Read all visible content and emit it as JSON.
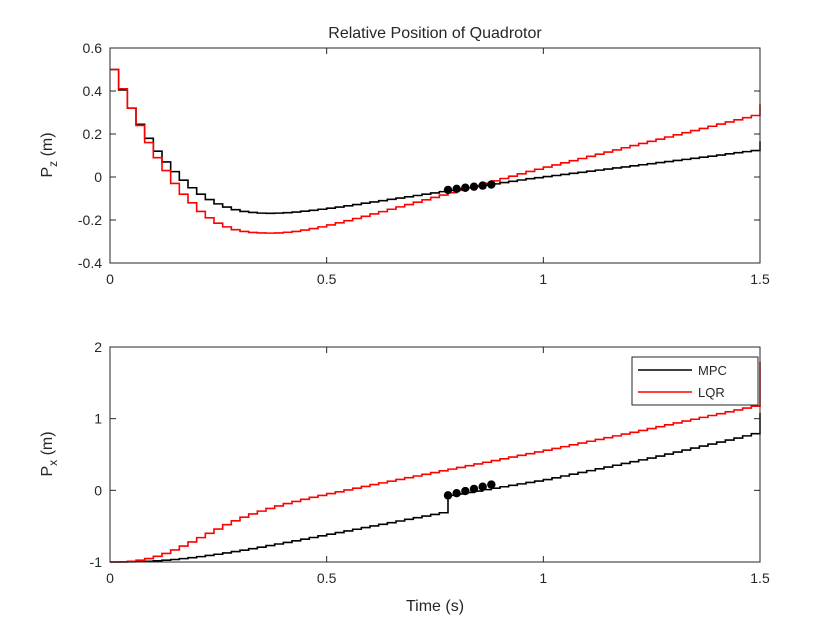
{
  "chart_data": [
    {
      "type": "line",
      "title": "Relative Position of Quadrotor",
      "ylabel_main": "P",
      "ylabel_sub": "z",
      "ylabel_unit": " (m)",
      "xlabel": "",
      "xlim": [
        0,
        1.5
      ],
      "ylim": [
        -0.4,
        0.6
      ],
      "xticks": [
        0,
        0.5,
        1,
        1.5
      ],
      "xtick_labels": [
        "0",
        "0.5",
        "1",
        "1.5"
      ],
      "yticks": [
        -0.4,
        -0.2,
        0,
        0.2,
        0.4,
        0.6
      ],
      "ytick_labels": [
        "-0.4",
        "-0.2",
        "0",
        "0.2",
        "0.4",
        "0.6"
      ],
      "grid": false,
      "stairs": true,
      "series": [
        {
          "name": "MPC",
          "color": "#000000",
          "x": [
            0,
            0.02,
            0.04,
            0.06,
            0.08,
            0.1,
            0.12,
            0.14,
            0.16,
            0.18,
            0.2,
            0.22,
            0.24,
            0.26,
            0.28,
            0.3,
            0.32,
            0.34,
            0.36,
            0.38,
            0.4,
            0.42,
            0.44,
            0.46,
            0.48,
            0.5,
            0.52,
            0.54,
            0.56,
            0.58,
            0.6,
            0.62,
            0.64,
            0.66,
            0.68,
            0.7,
            0.72,
            0.74,
            0.76,
            0.78,
            0.8,
            0.82,
            0.84,
            0.86,
            0.88,
            0.9,
            0.92,
            0.94,
            0.96,
            0.98,
            1.0,
            1.02,
            1.04,
            1.06,
            1.08,
            1.1,
            1.12,
            1.14,
            1.16,
            1.18,
            1.2,
            1.22,
            1.24,
            1.26,
            1.28,
            1.3,
            1.32,
            1.34,
            1.36,
            1.38,
            1.4,
            1.42,
            1.44,
            1.46,
            1.48,
            1.5
          ],
          "y": [
            0.5,
            0.405,
            0.32,
            0.245,
            0.18,
            0.12,
            0.07,
            0.025,
            -0.015,
            -0.05,
            -0.08,
            -0.105,
            -0.125,
            -0.14,
            -0.152,
            -0.16,
            -0.165,
            -0.168,
            -0.169,
            -0.168,
            -0.166,
            -0.163,
            -0.159,
            -0.155,
            -0.15,
            -0.145,
            -0.14,
            -0.134,
            -0.128,
            -0.122,
            -0.116,
            -0.11,
            -0.104,
            -0.098,
            -0.092,
            -0.086,
            -0.08,
            -0.074,
            -0.068,
            -0.062,
            -0.056,
            -0.05,
            -0.044,
            -0.038,
            -0.032,
            -0.026,
            -0.02,
            -0.014,
            -0.008,
            -0.003,
            0.002,
            0.007,
            0.012,
            0.017,
            0.022,
            0.027,
            0.032,
            0.037,
            0.042,
            0.047,
            0.052,
            0.057,
            0.062,
            0.067,
            0.072,
            0.077,
            0.082,
            0.087,
            0.092,
            0.097,
            0.102,
            0.108,
            0.113,
            0.118,
            0.123,
            0.166
          ]
        },
        {
          "name": "LQR",
          "color": "#ff0000",
          "x": [
            0,
            0.02,
            0.04,
            0.06,
            0.08,
            0.1,
            0.12,
            0.14,
            0.16,
            0.18,
            0.2,
            0.22,
            0.24,
            0.26,
            0.28,
            0.3,
            0.32,
            0.34,
            0.36,
            0.38,
            0.4,
            0.42,
            0.44,
            0.46,
            0.48,
            0.5,
            0.52,
            0.54,
            0.56,
            0.58,
            0.6,
            0.62,
            0.64,
            0.66,
            0.68,
            0.7,
            0.72,
            0.74,
            0.76,
            0.78,
            0.8,
            0.82,
            0.84,
            0.86,
            0.88,
            0.9,
            0.92,
            0.94,
            0.96,
            0.98,
            1.0,
            1.02,
            1.04,
            1.06,
            1.08,
            1.1,
            1.12,
            1.14,
            1.16,
            1.18,
            1.2,
            1.22,
            1.24,
            1.26,
            1.28,
            1.3,
            1.32,
            1.34,
            1.36,
            1.38,
            1.4,
            1.42,
            1.44,
            1.46,
            1.48,
            1.5
          ],
          "y": [
            0.5,
            0.41,
            0.32,
            0.24,
            0.16,
            0.09,
            0.03,
            -0.03,
            -0.08,
            -0.12,
            -0.16,
            -0.19,
            -0.215,
            -0.232,
            -0.245,
            -0.253,
            -0.258,
            -0.26,
            -0.261,
            -0.26,
            -0.257,
            -0.253,
            -0.247,
            -0.24,
            -0.232,
            -0.223,
            -0.213,
            -0.203,
            -0.193,
            -0.183,
            -0.172,
            -0.161,
            -0.15,
            -0.139,
            -0.128,
            -0.117,
            -0.106,
            -0.095,
            -0.084,
            -0.073,
            -0.062,
            -0.051,
            -0.04,
            -0.029,
            -0.018,
            -0.007,
            0.004,
            0.015,
            0.026,
            0.036,
            0.046,
            0.056,
            0.066,
            0.076,
            0.086,
            0.096,
            0.106,
            0.116,
            0.126,
            0.136,
            0.146,
            0.156,
            0.166,
            0.176,
            0.186,
            0.196,
            0.206,
            0.216,
            0.226,
            0.236,
            0.246,
            0.256,
            0.266,
            0.276,
            0.286,
            0.338
          ]
        }
      ],
      "markers": {
        "color": "#000000",
        "x": [
          0.78,
          0.8,
          0.82,
          0.84,
          0.86,
          0.88
        ],
        "y": [
          -0.06,
          -0.055,
          -0.05,
          -0.045,
          -0.04,
          -0.035
        ]
      }
    },
    {
      "type": "line",
      "title": "",
      "ylabel_main": "P",
      "ylabel_sub": "x",
      "ylabel_unit": " (m)",
      "xlabel": "Time (s)",
      "xlim": [
        0,
        1.5
      ],
      "ylim": [
        -1,
        2
      ],
      "xticks": [
        0,
        0.5,
        1,
        1.5
      ],
      "xtick_labels": [
        "0",
        "0.5",
        "1",
        "1.5"
      ],
      "yticks": [
        -1,
        0,
        1,
        2
      ],
      "ytick_labels": [
        "-1",
        "0",
        "1",
        "2"
      ],
      "grid": false,
      "stairs": true,
      "legend": {
        "position": "top-right",
        "entries": [
          "MPC",
          "LQR"
        ]
      },
      "series": [
        {
          "name": "MPC",
          "color": "#000000",
          "x": [
            0,
            0.02,
            0.04,
            0.06,
            0.08,
            0.1,
            0.12,
            0.14,
            0.16,
            0.18,
            0.2,
            0.22,
            0.24,
            0.26,
            0.28,
            0.3,
            0.32,
            0.34,
            0.36,
            0.38,
            0.4,
            0.42,
            0.44,
            0.46,
            0.48,
            0.5,
            0.52,
            0.54,
            0.56,
            0.58,
            0.6,
            0.62,
            0.64,
            0.66,
            0.68,
            0.7,
            0.72,
            0.74,
            0.76,
            0.78,
            0.8,
            0.82,
            0.84,
            0.86,
            0.88,
            0.9,
            0.92,
            0.94,
            0.96,
            0.98,
            1.0,
            1.02,
            1.04,
            1.06,
            1.08,
            1.1,
            1.12,
            1.14,
            1.16,
            1.18,
            1.2,
            1.22,
            1.24,
            1.26,
            1.28,
            1.3,
            1.32,
            1.34,
            1.36,
            1.38,
            1.4,
            1.42,
            1.44,
            1.46,
            1.48,
            1.5
          ],
          "y": [
            -1.0,
            -1.0,
            -0.998,
            -0.995,
            -0.99,
            -0.983,
            -0.975,
            -0.965,
            -0.953,
            -0.94,
            -0.925,
            -0.909,
            -0.892,
            -0.874,
            -0.855,
            -0.835,
            -0.814,
            -0.793,
            -0.771,
            -0.749,
            -0.727,
            -0.704,
            -0.681,
            -0.658,
            -0.635,
            -0.612,
            -0.589,
            -0.566,
            -0.543,
            -0.52,
            -0.497,
            -0.474,
            -0.451,
            -0.428,
            -0.405,
            -0.382,
            -0.359,
            -0.336,
            -0.313,
            -0.07,
            -0.05,
            -0.03,
            -0.01,
            0.01,
            0.03,
            0.05,
            0.07,
            0.09,
            0.11,
            0.13,
            0.15,
            0.175,
            0.2,
            0.225,
            0.25,
            0.275,
            0.3,
            0.325,
            0.35,
            0.375,
            0.4,
            0.425,
            0.45,
            0.478,
            0.506,
            0.534,
            0.562,
            0.59,
            0.618,
            0.646,
            0.674,
            0.702,
            0.73,
            0.76,
            0.79,
            1.08
          ]
        },
        {
          "name": "LQR",
          "color": "#ff0000",
          "x": [
            0,
            0.02,
            0.04,
            0.06,
            0.08,
            0.1,
            0.12,
            0.14,
            0.16,
            0.18,
            0.2,
            0.22,
            0.24,
            0.26,
            0.28,
            0.3,
            0.32,
            0.34,
            0.36,
            0.38,
            0.4,
            0.42,
            0.44,
            0.46,
            0.48,
            0.5,
            0.52,
            0.54,
            0.56,
            0.58,
            0.6,
            0.62,
            0.64,
            0.66,
            0.68,
            0.7,
            0.72,
            0.74,
            0.76,
            0.78,
            0.8,
            0.82,
            0.84,
            0.86,
            0.88,
            0.9,
            0.92,
            0.94,
            0.96,
            0.98,
            1.0,
            1.02,
            1.04,
            1.06,
            1.08,
            1.1,
            1.12,
            1.14,
            1.16,
            1.18,
            1.2,
            1.22,
            1.24,
            1.26,
            1.28,
            1.3,
            1.32,
            1.34,
            1.36,
            1.38,
            1.4,
            1.42,
            1.44,
            1.46,
            1.48,
            1.5
          ],
          "y": [
            -1.0,
            -0.998,
            -0.99,
            -0.975,
            -0.952,
            -0.92,
            -0.88,
            -0.832,
            -0.778,
            -0.72,
            -0.66,
            -0.6,
            -0.54,
            -0.48,
            -0.425,
            -0.375,
            -0.33,
            -0.29,
            -0.253,
            -0.218,
            -0.185,
            -0.155,
            -0.126,
            -0.098,
            -0.071,
            -0.045,
            -0.02,
            0.005,
            0.03,
            0.055,
            0.08,
            0.104,
            0.128,
            0.152,
            0.176,
            0.2,
            0.224,
            0.248,
            0.272,
            0.296,
            0.32,
            0.344,
            0.368,
            0.392,
            0.416,
            0.44,
            0.464,
            0.488,
            0.512,
            0.536,
            0.56,
            0.585,
            0.61,
            0.635,
            0.66,
            0.685,
            0.71,
            0.735,
            0.76,
            0.785,
            0.81,
            0.836,
            0.862,
            0.888,
            0.914,
            0.94,
            0.966,
            0.992,
            1.018,
            1.044,
            1.07,
            1.096,
            1.122,
            1.148,
            1.174,
            1.79
          ]
        }
      ],
      "markers": {
        "color": "#000000",
        "x": [
          0.78,
          0.8,
          0.82,
          0.84,
          0.86,
          0.88
        ],
        "y": [
          -0.07,
          -0.04,
          -0.01,
          0.02,
          0.05,
          0.08
        ]
      }
    }
  ]
}
